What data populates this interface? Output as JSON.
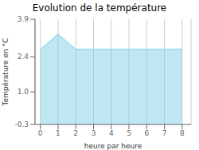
{
  "chart_data": {
    "type": "area",
    "title": "Evolution de la température",
    "xlabel": "heure par heure",
    "ylabel": "Température en °C",
    "x": [
      0,
      1,
      2,
      3,
      4,
      5,
      6,
      7,
      8
    ],
    "values": [
      2.7,
      3.3,
      2.7,
      2.7,
      2.7,
      2.7,
      2.7,
      2.7,
      2.7
    ],
    "color": "#7ecfe8",
    "xlim": [
      -0.3,
      8.5
    ],
    "ylim": [
      -0.3,
      3.9
    ],
    "xticks": [
      0,
      1,
      2,
      3,
      4,
      5,
      6,
      7,
      8
    ],
    "yticks": [
      -0.3,
      {
        "value": 1.0,
        "label": "1.0"
      },
      2.4,
      3.9
    ],
    "grid": "x"
  }
}
